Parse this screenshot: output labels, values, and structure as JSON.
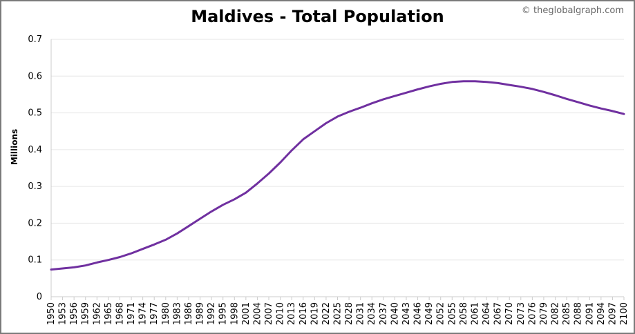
{
  "header": {
    "title": "Maldives - Total Population",
    "credit": "© theglobalgraph.com"
  },
  "colors": {
    "line": "#7030a0",
    "grid": "#e6e6e6",
    "axis": "#cccccc",
    "frame": "#7a7a7a"
  },
  "chart_data": {
    "type": "line",
    "title": "Maldives - Total Population",
    "xlabel": "",
    "ylabel": "Millions",
    "ylim": [
      0,
      0.7
    ],
    "xlim": [
      1950,
      2100
    ],
    "grid": true,
    "yticks": [
      "0",
      "0.1",
      "0.2",
      "0.3",
      "0.4",
      "0.5",
      "0.6",
      "0.7"
    ],
    "yticks_values": [
      0,
      0.1,
      0.2,
      0.3,
      0.4,
      0.5,
      0.6,
      0.7
    ],
    "xticks": [
      1950,
      1953,
      1956,
      1959,
      1962,
      1965,
      1968,
      1971,
      1974,
      1977,
      1980,
      1983,
      1986,
      1989,
      1992,
      1995,
      1998,
      2001,
      2004,
      2007,
      2010,
      2013,
      2016,
      2019,
      2022,
      2025,
      2028,
      2031,
      2034,
      2037,
      2040,
      2043,
      2046,
      2049,
      2052,
      2055,
      2058,
      2061,
      2064,
      2067,
      2070,
      2073,
      2076,
      2079,
      2082,
      2085,
      2088,
      2091,
      2094,
      2097,
      2100
    ],
    "series": [
      {
        "name": "Total Population",
        "x": [
          1950,
          1953,
          1956,
          1959,
          1962,
          1965,
          1968,
          1971,
          1974,
          1977,
          1980,
          1983,
          1986,
          1989,
          1992,
          1995,
          1998,
          2001,
          2004,
          2007,
          2010,
          2013,
          2016,
          2019,
          2022,
          2025,
          2028,
          2031,
          2034,
          2037,
          2040,
          2043,
          2046,
          2049,
          2052,
          2055,
          2058,
          2061,
          2064,
          2067,
          2070,
          2073,
          2076,
          2079,
          2082,
          2085,
          2088,
          2091,
          2094,
          2097,
          2100
        ],
        "values": [
          0.074,
          0.077,
          0.08,
          0.085,
          0.093,
          0.1,
          0.108,
          0.118,
          0.13,
          0.142,
          0.155,
          0.172,
          0.192,
          0.212,
          0.232,
          0.25,
          0.265,
          0.283,
          0.308,
          0.335,
          0.365,
          0.398,
          0.428,
          0.45,
          0.472,
          0.49,
          0.503,
          0.514,
          0.526,
          0.537,
          0.546,
          0.555,
          0.564,
          0.572,
          0.579,
          0.584,
          0.586,
          0.586,
          0.584,
          0.581,
          0.576,
          0.571,
          0.565,
          0.557,
          0.548,
          0.538,
          0.529,
          0.52,
          0.512,
          0.505,
          0.497
        ]
      }
    ]
  }
}
